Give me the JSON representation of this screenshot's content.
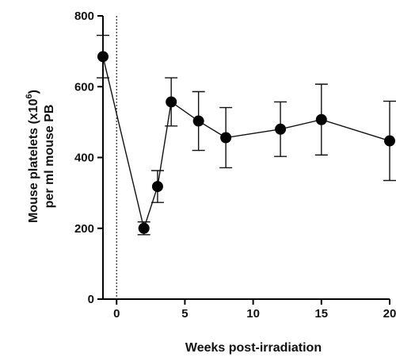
{
  "chart_data": {
    "type": "line",
    "title": "",
    "xlabel": "Weeks post-irradiation",
    "ylabel_line1": "Mouse platelets (x10",
    "ylabel_sup": "6",
    "ylabel_line1_end": ")",
    "ylabel_line2": "per ml mouse PB",
    "xlim": [
      -1,
      20
    ],
    "ylim": [
      0,
      800
    ],
    "x_ticks": [
      0,
      5,
      10,
      15,
      20
    ],
    "y_ticks": [
      0,
      200,
      400,
      600,
      800
    ],
    "reference_line_x": 0,
    "grid": false,
    "colors": {
      "line": "#111111",
      "marker": "#000000",
      "axis": "#000000"
    },
    "series": [
      {
        "x": [
          -1,
          2,
          3,
          4,
          6,
          8,
          12,
          15,
          20
        ],
        "y": [
          685,
          200,
          318,
          557,
          503,
          456,
          480,
          507,
          447
        ],
        "error": [
          60,
          18,
          45,
          68,
          83,
          85,
          77,
          100,
          112
        ]
      }
    ]
  }
}
